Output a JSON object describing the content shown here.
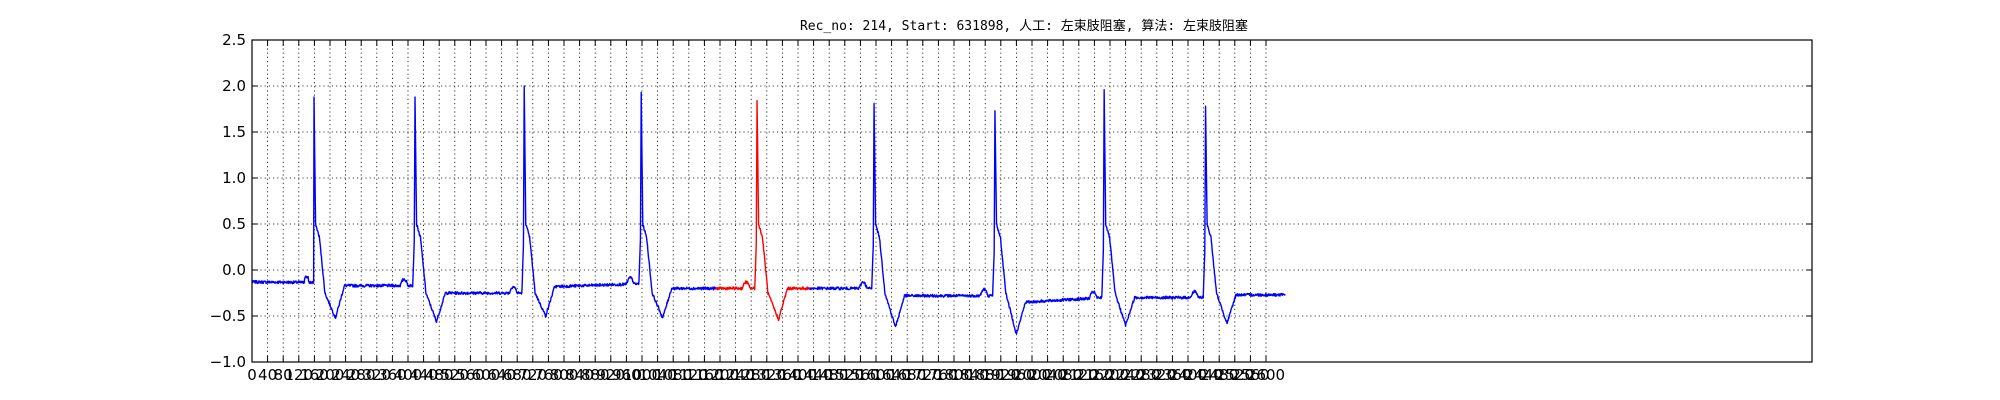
{
  "chart_data": {
    "type": "line",
    "title": "Rec_no: 214, Start: 631898, 人工: 左束肢阻塞, 算法: 左束肢阻塞",
    "xlabel": "",
    "ylabel": "",
    "xlim": [
      0,
      4000
    ],
    "ylim": [
      -1.0,
      2.5
    ],
    "grid": true,
    "yticks": [
      -1.0,
      -0.5,
      0.0,
      0.5,
      1.0,
      1.5,
      2.0,
      2.5
    ],
    "ytick_labels": [
      "−1.0",
      "−0.5",
      "0.0",
      "0.5",
      "1.0",
      "1.5",
      "2.0",
      "2.5"
    ],
    "xticks": [
      0,
      40,
      80,
      120,
      160,
      200,
      240,
      280,
      320,
      360,
      400,
      440,
      480,
      520,
      560,
      600,
      640,
      680,
      720,
      760,
      800,
      840,
      880,
      920,
      960,
      1000,
      1040,
      1080,
      1120,
      1160,
      1200,
      1240,
      1280,
      1320,
      1360,
      1400,
      1440,
      1480,
      1520,
      1560,
      1600,
      1640,
      1680,
      1720,
      1760,
      1800,
      1840,
      1880,
      1920,
      1960,
      2000,
      2040,
      2080,
      2120,
      2160,
      2200,
      2240,
      2280,
      2320,
      2360,
      2400,
      2440,
      2480,
      2520,
      2560,
      2600
    ],
    "xtick_labels": [
      "0",
      "40",
      "80",
      "120",
      "160",
      "200",
      "240",
      "280",
      "320",
      "360",
      "400",
      "440",
      "480",
      "520",
      "560",
      "600",
      "640",
      "680",
      "720",
      "760",
      "800",
      "840",
      "880",
      "920",
      "960",
      "1000",
      "1040",
      "1080",
      "1120",
      "1160",
      "1200",
      "1240",
      "1280",
      "1320",
      "1360",
      "1400",
      "1440",
      "1480",
      "1520",
      "1560",
      "1600",
      "1640",
      "1680",
      "1720",
      "1760",
      "1800",
      "1840",
      "1880",
      "1920",
      "1960",
      "2000",
      "2040",
      "2080",
      "2120",
      "2160",
      "2200",
      "2240",
      "2280",
      "2320",
      "2360",
      "2400",
      "2440",
      "2480",
      "2520",
      "2560",
      "2600"
    ],
    "sample_count": 2650,
    "baseline_segments": [
      [
        0,
        -0.13
      ],
      [
        60,
        -0.15
      ],
      [
        120,
        -0.12
      ],
      [
        150,
        -0.18
      ]
    ],
    "beats": [
      {
        "r": 159,
        "peak": 1.88,
        "pre": -0.15,
        "nadir": -0.52,
        "after": -0.17,
        "highlight": false
      },
      {
        "r": 418,
        "peak": 1.88,
        "pre": -0.17,
        "nadir": -0.56,
        "after": -0.25,
        "highlight": false
      },
      {
        "r": 698,
        "peak": 2.0,
        "pre": -0.25,
        "nadir": -0.5,
        "after": -0.18,
        "highlight": false
      },
      {
        "r": 998,
        "peak": 1.93,
        "pre": -0.15,
        "nadir": -0.52,
        "after": -0.2,
        "highlight": false
      },
      {
        "r": 1295,
        "peak": 1.84,
        "pre": -0.2,
        "nadir": -0.54,
        "after": -0.2,
        "highlight": true
      },
      {
        "r": 1595,
        "peak": 1.81,
        "pre": -0.2,
        "nadir": -0.62,
        "after": -0.28,
        "highlight": false
      },
      {
        "r": 1905,
        "peak": 1.73,
        "pre": -0.28,
        "nadir": -0.7,
        "after": -0.35,
        "highlight": false
      },
      {
        "r": 2185,
        "peak": 1.96,
        "pre": -0.3,
        "nadir": -0.6,
        "after": -0.3,
        "highlight": false
      },
      {
        "r": 2445,
        "peak": 1.78,
        "pre": -0.3,
        "nadir": -0.58,
        "after": -0.27,
        "highlight": false
      }
    ],
    "highlight_range": [
      1190,
      1430
    ],
    "series": [
      {
        "color": "#0000ff"
      },
      {
        "color": "#ff0000"
      }
    ]
  }
}
